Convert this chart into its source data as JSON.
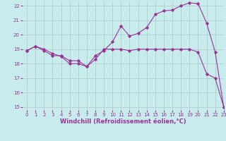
{
  "xlabel": "Windchill (Refroidissement éolien,°C)",
  "background_color": "#c8ecec",
  "line_color": "#993399",
  "grid_color": "#b0c8c8",
  "xlim": [
    -0.5,
    23
  ],
  "ylim": [
    14.8,
    22.3
  ],
  "xticks": [
    0,
    1,
    2,
    3,
    4,
    5,
    6,
    7,
    8,
    9,
    10,
    11,
    12,
    13,
    14,
    15,
    16,
    17,
    18,
    19,
    20,
    21,
    22,
    23
  ],
  "yticks": [
    15,
    16,
    17,
    18,
    19,
    20,
    21,
    22
  ],
  "line1_x": [
    0,
    1,
    2,
    3,
    4,
    5,
    6,
    7,
    8,
    9,
    10,
    11,
    12,
    13,
    14,
    15,
    16,
    17,
    18,
    19,
    20,
    21,
    22,
    23
  ],
  "line1_y": [
    18.9,
    19.2,
    18.9,
    18.55,
    18.55,
    18.2,
    18.2,
    17.8,
    18.55,
    18.9,
    19.5,
    20.6,
    19.9,
    20.1,
    20.5,
    21.4,
    21.65,
    21.7,
    22.0,
    22.2,
    22.15,
    20.8,
    18.8,
    15.0
  ],
  "line2_x": [
    0,
    1,
    2,
    3,
    4,
    5,
    6,
    7,
    8,
    9,
    10,
    11,
    12,
    13,
    14,
    15,
    16,
    17,
    18,
    19,
    20,
    21,
    22,
    23
  ],
  "line2_y": [
    18.9,
    19.2,
    19.0,
    18.7,
    18.5,
    18.0,
    18.0,
    17.8,
    18.3,
    19.0,
    19.0,
    19.0,
    18.9,
    19.0,
    19.0,
    19.0,
    19.0,
    19.0,
    19.0,
    19.0,
    18.8,
    17.3,
    17.0,
    15.0
  ],
  "marker": "D",
  "markersize": 1.8,
  "linewidth": 0.8,
  "tick_fontsize": 5.0,
  "xlabel_fontsize": 6.0
}
